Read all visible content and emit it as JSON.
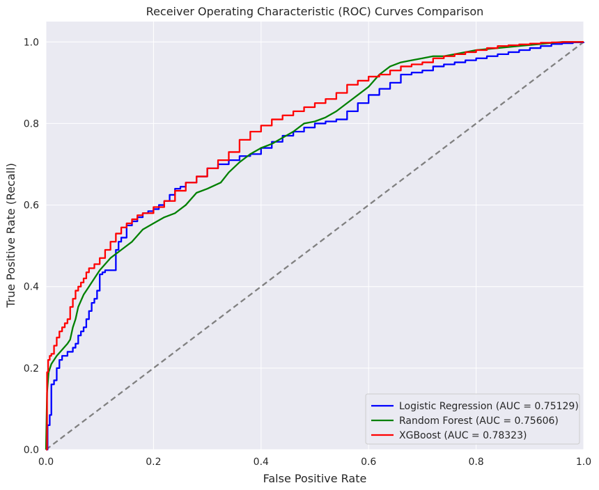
{
  "chart_data": {
    "type": "line",
    "title": "Receiver Operating Characteristic (ROC) Curves Comparison",
    "xlabel": "False Positive Rate",
    "ylabel": "True Positive Rate (Recall)",
    "xlim": [
      0,
      1
    ],
    "ylim": [
      0,
      1.05
    ],
    "xticks": [
      0.0,
      0.2,
      0.4,
      0.6,
      0.8,
      1.0
    ],
    "yticks": [
      0.0,
      0.2,
      0.4,
      0.6,
      0.8,
      1.0
    ],
    "xtick_labels": [
      "0.0",
      "0.2",
      "0.4",
      "0.6",
      "0.8",
      "1.0"
    ],
    "ytick_labels": [
      "0.0",
      "0.2",
      "0.4",
      "0.6",
      "0.8",
      "1.0"
    ],
    "grid": true,
    "legend_position": "lower-right",
    "background_color": "#eaeaf2",
    "grid_color": "#ffffff",
    "series": [
      {
        "name": "Logistic Regression (AUC = 0.75129)",
        "color": "#0000ff",
        "style": "step",
        "x": [
          0,
          0.003,
          0.007,
          0.01,
          0.015,
          0.02,
          0.025,
          0.03,
          0.04,
          0.05,
          0.055,
          0.06,
          0.065,
          0.07,
          0.075,
          0.08,
          0.085,
          0.09,
          0.095,
          0.1,
          0.105,
          0.11,
          0.12,
          0.13,
          0.135,
          0.14,
          0.15,
          0.16,
          0.17,
          0.18,
          0.19,
          0.2,
          0.21,
          0.22,
          0.23,
          0.24,
          0.25,
          0.26,
          0.28,
          0.3,
          0.32,
          0.34,
          0.36,
          0.38,
          0.4,
          0.42,
          0.44,
          0.46,
          0.48,
          0.5,
          0.52,
          0.54,
          0.56,
          0.58,
          0.6,
          0.62,
          0.64,
          0.66,
          0.68,
          0.7,
          0.72,
          0.74,
          0.76,
          0.78,
          0.8,
          0.82,
          0.84,
          0.86,
          0.88,
          0.9,
          0.92,
          0.94,
          0.96,
          0.98,
          1.0
        ],
        "y": [
          0,
          0.06,
          0.085,
          0.16,
          0.17,
          0.2,
          0.22,
          0.23,
          0.24,
          0.25,
          0.26,
          0.28,
          0.29,
          0.3,
          0.32,
          0.34,
          0.36,
          0.37,
          0.39,
          0.43,
          0.435,
          0.44,
          0.44,
          0.49,
          0.51,
          0.52,
          0.55,
          0.56,
          0.57,
          0.58,
          0.585,
          0.59,
          0.6,
          0.61,
          0.625,
          0.64,
          0.645,
          0.655,
          0.67,
          0.69,
          0.7,
          0.71,
          0.72,
          0.725,
          0.74,
          0.755,
          0.77,
          0.78,
          0.79,
          0.8,
          0.805,
          0.81,
          0.83,
          0.85,
          0.87,
          0.885,
          0.9,
          0.92,
          0.925,
          0.93,
          0.94,
          0.945,
          0.95,
          0.955,
          0.96,
          0.965,
          0.97,
          0.975,
          0.98,
          0.985,
          0.99,
          0.995,
          0.997,
          0.999,
          1.0
        ]
      },
      {
        "name": "Random Forest (AUC = 0.75606)",
        "color": "#008000",
        "style": "smooth",
        "x": [
          0,
          0.002,
          0.005,
          0.01,
          0.02,
          0.03,
          0.04,
          0.045,
          0.05,
          0.055,
          0.06,
          0.07,
          0.08,
          0.1,
          0.12,
          0.14,
          0.16,
          0.18,
          0.2,
          0.22,
          0.24,
          0.26,
          0.28,
          0.3,
          0.325,
          0.34,
          0.36,
          0.38,
          0.4,
          0.42,
          0.44,
          0.46,
          0.48,
          0.5,
          0.52,
          0.54,
          0.56,
          0.58,
          0.6,
          0.62,
          0.64,
          0.66,
          0.68,
          0.7,
          0.72,
          0.74,
          0.76,
          0.8,
          0.84,
          0.88,
          0.92,
          0.96,
          1.0
        ],
        "y": [
          0,
          0.14,
          0.19,
          0.21,
          0.23,
          0.245,
          0.26,
          0.27,
          0.3,
          0.32,
          0.35,
          0.38,
          0.4,
          0.44,
          0.47,
          0.49,
          0.51,
          0.54,
          0.555,
          0.57,
          0.58,
          0.6,
          0.63,
          0.64,
          0.655,
          0.68,
          0.705,
          0.725,
          0.74,
          0.75,
          0.765,
          0.78,
          0.8,
          0.805,
          0.815,
          0.83,
          0.85,
          0.87,
          0.89,
          0.92,
          0.94,
          0.95,
          0.955,
          0.96,
          0.965,
          0.965,
          0.97,
          0.98,
          0.985,
          0.99,
          0.995,
          1.0,
          1.0
        ]
      },
      {
        "name": "XGBoost (AUC = 0.78323)",
        "color": "#ff0000",
        "style": "step",
        "x": [
          0,
          0.002,
          0.004,
          0.007,
          0.01,
          0.015,
          0.02,
          0.025,
          0.03,
          0.035,
          0.04,
          0.045,
          0.05,
          0.055,
          0.06,
          0.065,
          0.07,
          0.075,
          0.08,
          0.09,
          0.1,
          0.11,
          0.12,
          0.13,
          0.14,
          0.15,
          0.16,
          0.17,
          0.18,
          0.2,
          0.22,
          0.24,
          0.26,
          0.28,
          0.3,
          0.32,
          0.34,
          0.36,
          0.38,
          0.4,
          0.42,
          0.44,
          0.46,
          0.48,
          0.5,
          0.52,
          0.54,
          0.56,
          0.58,
          0.6,
          0.62,
          0.64,
          0.66,
          0.68,
          0.7,
          0.72,
          0.74,
          0.76,
          0.78,
          0.8,
          0.82,
          0.84,
          0.86,
          0.88,
          0.9,
          0.92,
          0.94,
          0.96,
          0.98,
          1.0
        ],
        "y": [
          0,
          0.19,
          0.22,
          0.23,
          0.235,
          0.255,
          0.275,
          0.29,
          0.3,
          0.31,
          0.32,
          0.35,
          0.37,
          0.39,
          0.4,
          0.41,
          0.42,
          0.435,
          0.445,
          0.455,
          0.47,
          0.49,
          0.51,
          0.53,
          0.545,
          0.555,
          0.565,
          0.575,
          0.58,
          0.595,
          0.61,
          0.635,
          0.655,
          0.67,
          0.69,
          0.71,
          0.73,
          0.76,
          0.78,
          0.795,
          0.81,
          0.82,
          0.83,
          0.84,
          0.85,
          0.86,
          0.875,
          0.895,
          0.905,
          0.915,
          0.92,
          0.93,
          0.94,
          0.945,
          0.95,
          0.96,
          0.965,
          0.97,
          0.975,
          0.98,
          0.985,
          0.99,
          0.992,
          0.994,
          0.996,
          0.998,
          0.999,
          1.0,
          1.0,
          1.0
        ]
      },
      {
        "name": "",
        "color": "#808080",
        "style": "dashed",
        "x": [
          0,
          1
        ],
        "y": [
          0,
          1
        ]
      }
    ]
  }
}
